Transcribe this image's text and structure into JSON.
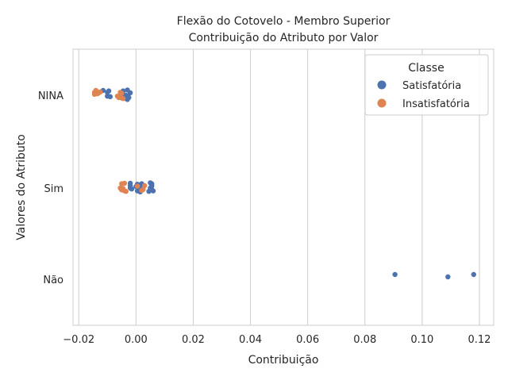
{
  "chart_data": {
    "type": "scatter",
    "title": "Flexão do Cotovelo - Membro Superior",
    "subtitle": "Contribuição do Atributo por Valor",
    "xlabel": "Contribuição",
    "ylabel": "Valores do Atributo",
    "xlim": [
      -0.022,
      0.125
    ],
    "x_ticks": [
      -0.02,
      0.0,
      0.02,
      0.04,
      0.06,
      0.08,
      0.1,
      0.12
    ],
    "x_tick_labels": [
      "−0.02",
      "0.00",
      "0.02",
      "0.04",
      "0.06",
      "0.08",
      "0.10",
      "0.12"
    ],
    "categories": [
      "NINA",
      "Sim",
      "Não"
    ],
    "grid": true,
    "legend": {
      "title": "Classe",
      "position": "top-right"
    },
    "series": [
      {
        "name": "Satisfatória",
        "color": "#4c72b0",
        "points": [
          {
            "cat": "NINA",
            "x": -0.0115,
            "jitter": -0.1
          },
          {
            "cat": "NINA",
            "x": -0.01,
            "jitter": -0.06
          },
          {
            "cat": "NINA",
            "x": -0.0095,
            "jitter": -0.09
          },
          {
            "cat": "NINA",
            "x": -0.01,
            "jitter": 0.02
          },
          {
            "cat": "NINA",
            "x": -0.009,
            "jitter": 0.03
          },
          {
            "cat": "NINA",
            "x": -0.0045,
            "jitter": -0.09
          },
          {
            "cat": "NINA",
            "x": -0.003,
            "jitter": -0.11
          },
          {
            "cat": "NINA",
            "x": -0.002,
            "jitter": -0.05
          },
          {
            "cat": "NINA",
            "x": -0.0045,
            "jitter": -0.02
          },
          {
            "cat": "NINA",
            "x": -0.0035,
            "jitter": 0.0
          },
          {
            "cat": "NINA",
            "x": -0.003,
            "jitter": 0.02
          },
          {
            "cat": "NINA",
            "x": -0.004,
            "jitter": 0.04
          },
          {
            "cat": "NINA",
            "x": -0.0025,
            "jitter": 0.05
          },
          {
            "cat": "NINA",
            "x": -0.0035,
            "jitter": 0.07
          },
          {
            "cat": "NINA",
            "x": -0.003,
            "jitter": 0.09
          },
          {
            "cat": "Sim",
            "x": -0.002,
            "jitter": -0.1
          },
          {
            "cat": "Sim",
            "x": 0.0005,
            "jitter": -0.08
          },
          {
            "cat": "Sim",
            "x": 0.002,
            "jitter": -0.09
          },
          {
            "cat": "Sim",
            "x": 0.005,
            "jitter": -0.11
          },
          {
            "cat": "Sim",
            "x": 0.0055,
            "jitter": -0.09
          },
          {
            "cat": "Sim",
            "x": -0.002,
            "jitter": -0.05
          },
          {
            "cat": "Sim",
            "x": 0.0,
            "jitter": -0.03
          },
          {
            "cat": "Sim",
            "x": 0.001,
            "jitter": -0.02
          },
          {
            "cat": "Sim",
            "x": 0.0055,
            "jitter": -0.06
          },
          {
            "cat": "Sim",
            "x": 0.0055,
            "jitter": -0.04
          },
          {
            "cat": "Sim",
            "x": -0.002,
            "jitter": 0.0
          },
          {
            "cat": "Sim",
            "x": -0.0015,
            "jitter": 0.02
          },
          {
            "cat": "Sim",
            "x": 0.0015,
            "jitter": 0.0
          },
          {
            "cat": "Sim",
            "x": 0.005,
            "jitter": 0.0
          },
          {
            "cat": "Sim",
            "x": 0.0055,
            "jitter": 0.03
          },
          {
            "cat": "Sim",
            "x": 0.0005,
            "jitter": 0.06
          },
          {
            "cat": "Sim",
            "x": 0.0015,
            "jitter": 0.08
          },
          {
            "cat": "Sim",
            "x": 0.0045,
            "jitter": 0.07
          },
          {
            "cat": "Sim",
            "x": 0.006,
            "jitter": 0.06
          },
          {
            "cat": "Não",
            "x": 0.0905,
            "jitter": -0.1
          },
          {
            "cat": "Não",
            "x": 0.109,
            "jitter": -0.05
          },
          {
            "cat": "Não",
            "x": 0.118,
            "jitter": -0.1
          }
        ]
      },
      {
        "name": "Insatisfatória",
        "color": "#dd8452",
        "points": [
          {
            "cat": "NINA",
            "x": -0.014,
            "jitter": -0.1
          },
          {
            "cat": "NINA",
            "x": -0.0145,
            "jitter": -0.06
          },
          {
            "cat": "NINA",
            "x": -0.013,
            "jitter": -0.05
          },
          {
            "cat": "NINA",
            "x": -0.0125,
            "jitter": -0.07
          },
          {
            "cat": "NINA",
            "x": -0.0145,
            "jitter": -0.02
          },
          {
            "cat": "NINA",
            "x": -0.0135,
            "jitter": -0.03
          },
          {
            "cat": "NINA",
            "x": -0.0055,
            "jitter": -0.06
          },
          {
            "cat": "NINA",
            "x": -0.005,
            "jitter": -0.04
          },
          {
            "cat": "NINA",
            "x": -0.0065,
            "jitter": 0.02
          },
          {
            "cat": "NINA",
            "x": -0.0055,
            "jitter": 0.04
          },
          {
            "cat": "NINA",
            "x": -0.006,
            "jitter": 0.05
          },
          {
            "cat": "NINA",
            "x": -0.005,
            "jitter": 0.06
          },
          {
            "cat": "NINA",
            "x": -0.0045,
            "jitter": 0.07
          },
          {
            "cat": "Sim",
            "x": -0.005,
            "jitter": -0.09
          },
          {
            "cat": "Sim",
            "x": -0.004,
            "jitter": -0.1
          },
          {
            "cat": "Sim",
            "x": 0.0005,
            "jitter": -0.04
          },
          {
            "cat": "Sim",
            "x": 0.003,
            "jitter": -0.05
          },
          {
            "cat": "Sim",
            "x": -0.0055,
            "jitter": 0.0
          },
          {
            "cat": "Sim",
            "x": -0.0045,
            "jitter": 0.01
          },
          {
            "cat": "Sim",
            "x": -0.005,
            "jitter": 0.04
          },
          {
            "cat": "Sim",
            "x": -0.004,
            "jitter": 0.06
          },
          {
            "cat": "Sim",
            "x": -0.0035,
            "jitter": 0.07
          },
          {
            "cat": "Sim",
            "x": 0.0025,
            "jitter": 0.03
          },
          {
            "cat": "Sim",
            "x": 0.002,
            "jitter": 0.05
          }
        ]
      }
    ]
  }
}
